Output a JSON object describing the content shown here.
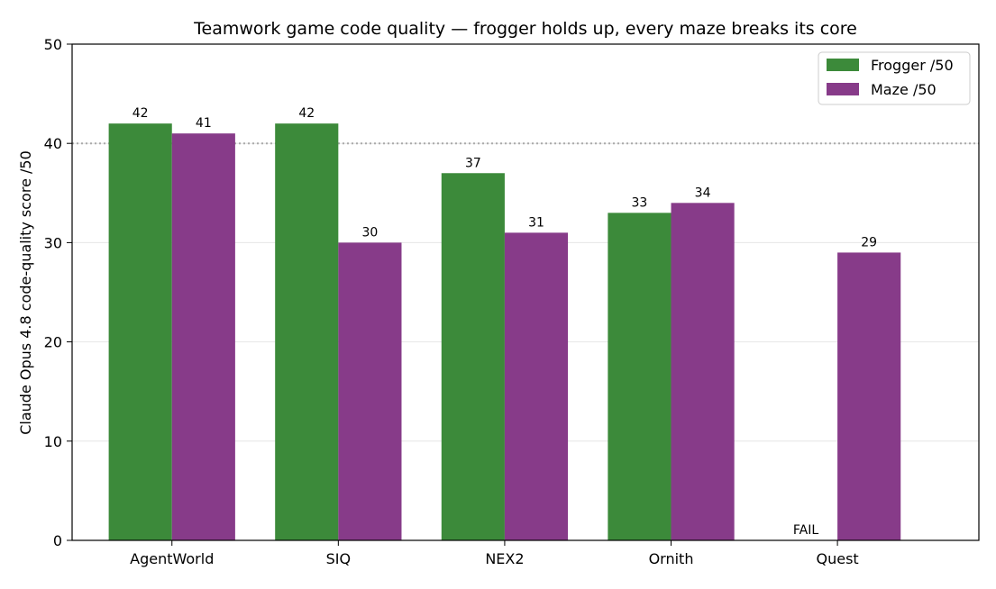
{
  "chart_data": {
    "type": "bar",
    "title": "Teamwork game code quality — frogger holds up, every maze breaks its core",
    "xlabel": "",
    "ylabel": "Claude Opus 4.8 code-quality score /50",
    "ylim": [
      0,
      50
    ],
    "yticks": [
      "0",
      "10",
      "20",
      "30",
      "40",
      "50"
    ],
    "categories": [
      "AgentWorld",
      "SIQ",
      "NEX2",
      "Ornith",
      "Quest"
    ],
    "series": [
      {
        "name": "Frogger /50",
        "color": "#3c8a3a",
        "values": [
          42,
          42,
          37,
          33,
          null
        ],
        "labels": [
          "42",
          "42",
          "37",
          "33",
          "FAIL"
        ]
      },
      {
        "name": "Maze /50",
        "color": "#873b89",
        "values": [
          41,
          30,
          31,
          34,
          29
        ],
        "labels": [
          "41",
          "30",
          "31",
          "34",
          "29"
        ]
      }
    ],
    "reference_line": {
      "y": 40,
      "style": "dotted",
      "color": "#aaaaaa"
    },
    "grid": "y",
    "legend_position": "top-right"
  }
}
